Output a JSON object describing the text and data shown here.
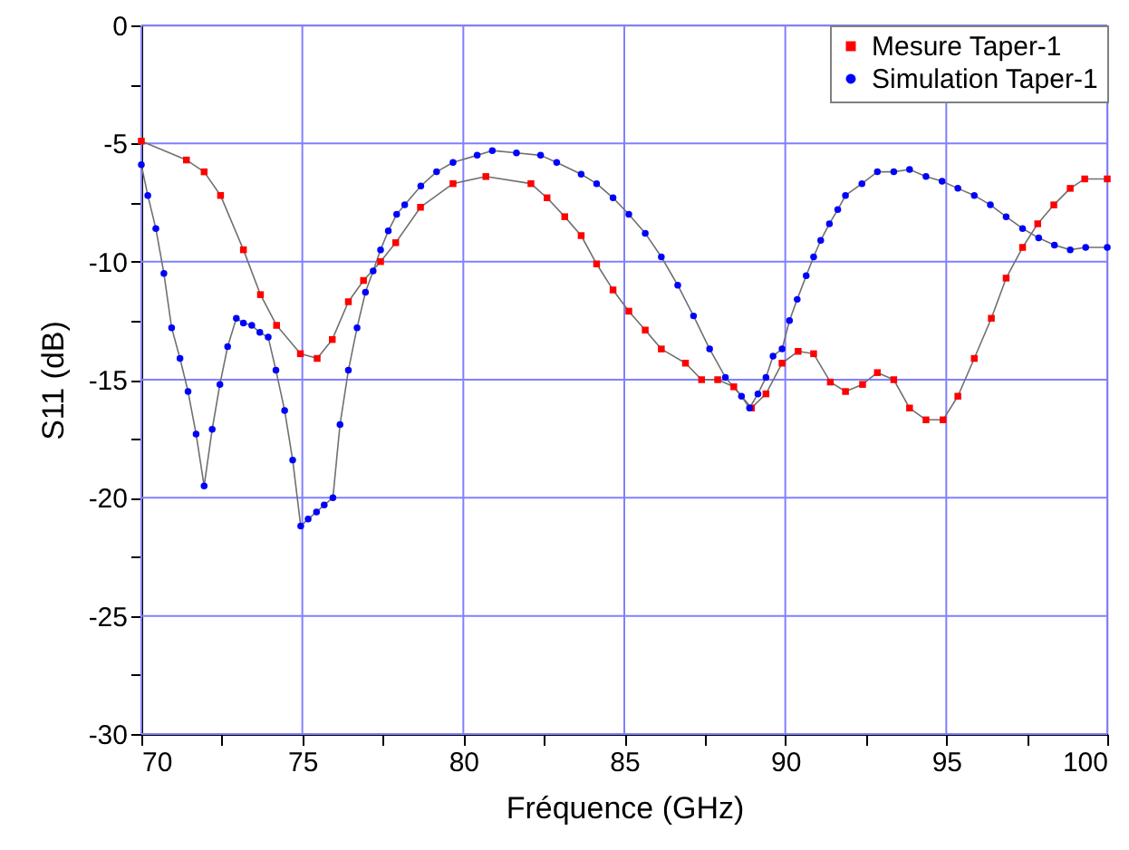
{
  "chart_data": {
    "type": "line",
    "xlabel": "Fréquence (GHz)",
    "ylabel": "S11 (dB)",
    "xlim": [
      70,
      100
    ],
    "ylim": [
      -30,
      0
    ],
    "xticks": [
      70,
      {
        "value": 72.5,
        "label": null
      },
      75,
      {
        "value": 77.5,
        "label": null
      },
      80,
      {
        "value": 82.5,
        "label": null
      },
      85,
      {
        "value": 87.5,
        "label": null
      },
      90,
      {
        "value": 92.5,
        "label": null
      },
      95,
      {
        "value": 97.5,
        "label": null
      },
      100
    ],
    "yticks": [
      -30,
      {
        "value": -27.5,
        "label": null
      },
      -25,
      {
        "value": -22.5,
        "label": null
      },
      -20,
      {
        "value": -17.5,
        "label": null
      },
      -15,
      {
        "value": -12.5,
        "label": null
      },
      -10,
      {
        "value": -7.5,
        "label": null
      },
      -5,
      {
        "value": -2.5,
        "label": null
      },
      0
    ],
    "grid": true,
    "legend": "top right",
    "line_style": "solid",
    "series": [
      {
        "name": "Mesure Taper-1",
        "color": "#ff0000",
        "marker": "square",
        "x": [
          70.0,
          71.4,
          71.95,
          72.46,
          73.17,
          73.7,
          74.2,
          74.94,
          75.46,
          75.93,
          76.43,
          76.9,
          77.43,
          77.9,
          78.67,
          79.68,
          80.7,
          82.1,
          82.6,
          83.15,
          83.66,
          84.14,
          84.65,
          85.14,
          85.65,
          86.15,
          86.9,
          87.4,
          87.9,
          88.4,
          88.95,
          89.4,
          89.9,
          90.4,
          90.88,
          91.4,
          91.87,
          92.4,
          92.86,
          93.37,
          93.86,
          94.37,
          94.9,
          95.36,
          95.87,
          96.4,
          96.86,
          97.37,
          97.84,
          98.34,
          98.85,
          99.3,
          100.0
        ],
        "values": [
          -4.9,
          -5.7,
          -6.2,
          -7.2,
          -9.5,
          -11.4,
          -12.7,
          -13.9,
          -14.1,
          -13.3,
          -11.7,
          -10.8,
          -10.0,
          -9.2,
          -7.7,
          -6.7,
          -6.4,
          -6.7,
          -7.3,
          -8.1,
          -8.9,
          -10.1,
          -11.2,
          -12.1,
          -12.9,
          -13.7,
          -14.3,
          -15.0,
          -15.0,
          -15.3,
          -16.2,
          -15.6,
          -14.3,
          -13.8,
          -13.9,
          -15.1,
          -15.5,
          -15.2,
          -14.7,
          -15.0,
          -16.2,
          -16.7,
          -16.7,
          -15.7,
          -14.1,
          -12.4,
          -10.7,
          -9.4,
          -8.4,
          -7.6,
          -6.9,
          -6.5,
          -6.5
        ]
      },
      {
        "name": "Simulation Taper-1",
        "color": "#0000ff",
        "marker": "circle",
        "x": [
          70.0,
          70.2,
          70.45,
          70.7,
          70.94,
          71.2,
          71.45,
          71.7,
          71.95,
          72.2,
          72.44,
          72.68,
          72.95,
          73.17,
          73.43,
          73.68,
          73.94,
          74.18,
          74.45,
          74.7,
          74.95,
          75.18,
          75.44,
          75.68,
          75.95,
          76.17,
          76.43,
          76.7,
          76.96,
          77.2,
          77.43,
          77.67,
          77.93,
          78.18,
          78.68,
          79.17,
          79.68,
          80.43,
          80.9,
          81.65,
          82.4,
          82.9,
          83.66,
          84.14,
          84.65,
          85.14,
          85.65,
          86.15,
          86.66,
          87.15,
          87.65,
          88.14,
          88.64,
          88.89,
          89.15,
          89.4,
          89.62,
          89.9,
          90.13,
          90.37,
          90.65,
          90.88,
          91.1,
          91.37,
          91.63,
          91.87,
          92.38,
          92.86,
          93.37,
          93.86,
          94.37,
          94.87,
          95.36,
          95.87,
          96.37,
          96.86,
          97.37,
          97.87,
          98.36,
          98.85,
          99.33,
          100.0
        ],
        "values": [
          -5.9,
          -7.2,
          -8.6,
          -10.5,
          -12.8,
          -14.1,
          -15.5,
          -17.3,
          -19.5,
          -17.1,
          -15.2,
          -13.6,
          -12.4,
          -12.6,
          -12.7,
          -13.0,
          -13.2,
          -14.6,
          -16.3,
          -18.4,
          -21.2,
          -20.9,
          -20.6,
          -20.3,
          -20.0,
          -16.9,
          -14.6,
          -12.8,
          -11.3,
          -10.4,
          -9.5,
          -8.7,
          -8.0,
          -7.6,
          -6.8,
          -6.2,
          -5.8,
          -5.5,
          -5.3,
          -5.4,
          -5.5,
          -5.8,
          -6.3,
          -6.7,
          -7.3,
          -8.0,
          -8.8,
          -9.8,
          -11.0,
          -12.3,
          -13.7,
          -14.9,
          -15.7,
          -16.2,
          -15.6,
          -14.9,
          -14.0,
          -13.7,
          -12.5,
          -11.6,
          -10.6,
          -9.8,
          -9.1,
          -8.4,
          -7.8,
          -7.2,
          -6.7,
          -6.2,
          -6.2,
          -6.1,
          -6.4,
          -6.6,
          -6.9,
          -7.2,
          -7.6,
          -8.1,
          -8.6,
          -9.0,
          -9.3,
          -9.5,
          -9.4,
          -9.4
        ]
      }
    ]
  }
}
